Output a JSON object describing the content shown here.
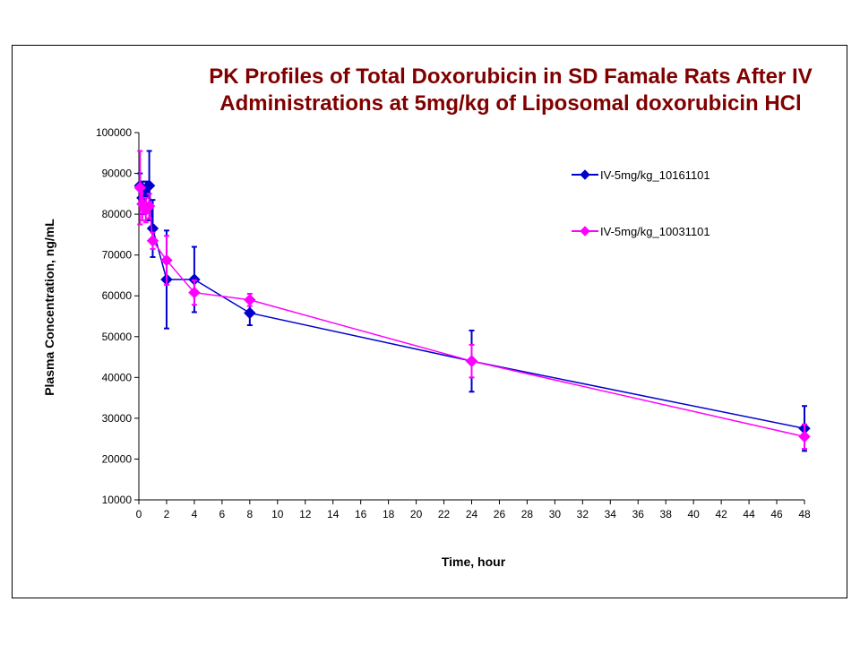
{
  "chart_data": {
    "type": "line",
    "title": "PK Profiles of Total Doxorubicin in SD Famale Rats After IV Administrations at 5mg/kg of Liposomal doxorubicin HCl",
    "title_lines": [
      "PK Profiles of Total Doxorubicin in SD Famale Rats After IV",
      "Administrations at 5mg/kg of Liposomal doxorubicin HCl"
    ],
    "xlabel": "Time, hour",
    "ylabel": "Plasma Concentration,  ng/mL",
    "xlim": [
      0,
      48
    ],
    "ylim": [
      10000,
      100000
    ],
    "xticks": [
      0,
      2,
      4,
      6,
      8,
      10,
      12,
      14,
      16,
      18,
      20,
      22,
      24,
      26,
      28,
      30,
      32,
      34,
      36,
      38,
      40,
      42,
      44,
      46,
      48
    ],
    "yticks": [
      10000,
      20000,
      30000,
      40000,
      50000,
      60000,
      70000,
      80000,
      90000,
      100000
    ],
    "legend_position": "right",
    "series": [
      {
        "name": "IV-5mg/kg_10161101",
        "color": "#0000cc",
        "marker": "diamond",
        "x": [
          0.083,
          0.25,
          0.5,
          0.75,
          1,
          2,
          4,
          8,
          24,
          48
        ],
        "y": [
          87000,
          84000,
          85000,
          87000,
          76500,
          64000,
          64000,
          55800,
          44000,
          27500
        ],
        "err": [
          3000,
          4000,
          3000,
          8500,
          7000,
          12000,
          8000,
          3000,
          7500,
          5500
        ]
      },
      {
        "name": "IV-5mg/kg_10031101",
        "color": "#ff00ff",
        "marker": "diamond",
        "x": [
          0.083,
          0.25,
          0.5,
          0.75,
          1,
          2,
          4,
          8,
          24,
          48
        ],
        "y": [
          86500,
          82500,
          81000,
          82000,
          73500,
          68700,
          60800,
          59000,
          44000,
          25500
        ],
        "err": [
          9000,
          4000,
          3000,
          3000,
          2000,
          6000,
          3000,
          1500,
          4000,
          3000
        ]
      }
    ]
  }
}
